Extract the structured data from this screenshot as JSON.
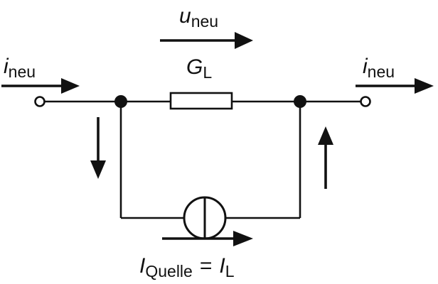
{
  "diagram": {
    "voltage": {
      "symbol": "u",
      "subscript": "neu"
    },
    "current_in": {
      "symbol": "i",
      "subscript": "neu"
    },
    "current_out": {
      "symbol": "i",
      "subscript": "neu"
    },
    "conductance": {
      "symbol": "G",
      "subscript": "L"
    },
    "source": {
      "symbol": "I",
      "subscript": "Quelle",
      "equals": "=",
      "rhs_symbol": "I",
      "rhs_subscript": "L"
    },
    "colors": {
      "ink": "#111111",
      "background": "#ffffff"
    }
  }
}
